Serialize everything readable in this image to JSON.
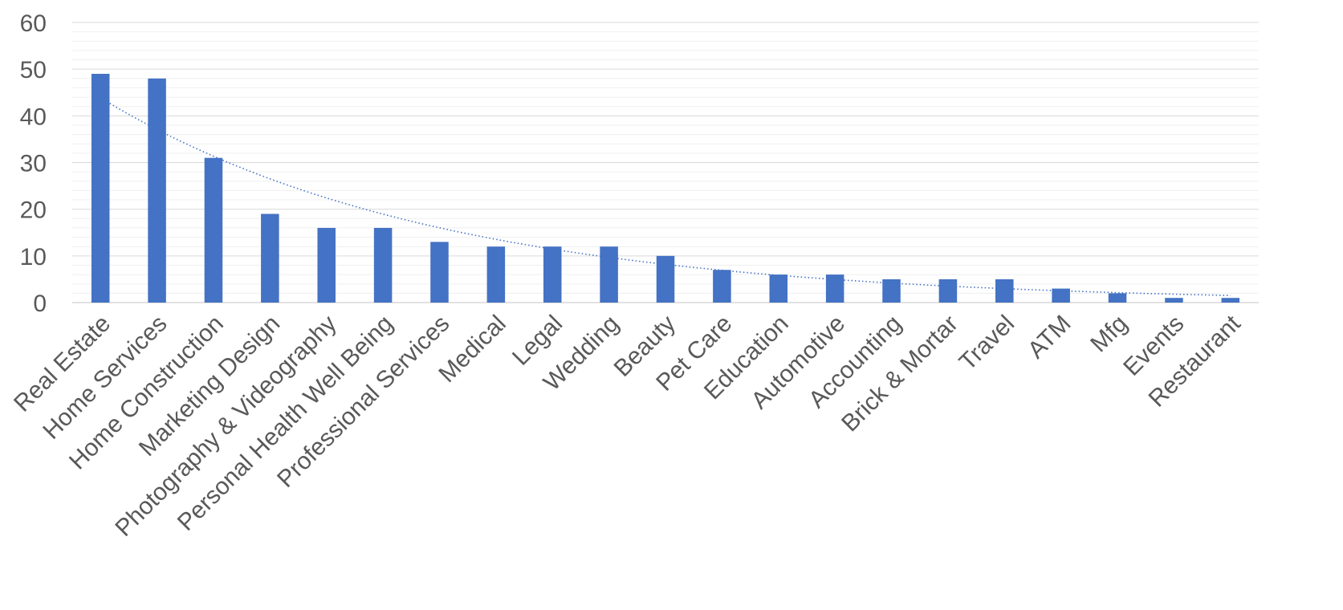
{
  "chart_data": {
    "type": "bar",
    "title": "",
    "xlabel": "",
    "ylabel": "",
    "ylim": [
      0,
      60
    ],
    "yticks": [
      0,
      10,
      20,
      30,
      40,
      50,
      60
    ],
    "grid": "horizontal major and minor",
    "legend": "none",
    "trendline": "exponential, dotted",
    "colors": {
      "bar": "#4472c4",
      "trendline": "#4472c4",
      "text": "#595959"
    },
    "categories": [
      "Real Estate",
      "Home Services",
      "Home Construction",
      "Marketing Design",
      "Photography & Videography",
      "Personal Health Well Being",
      "Professional Services",
      "Medical",
      "Legal",
      "Wedding",
      "Beauty",
      "Pet Care",
      "Education",
      "Automotive",
      "Accounting",
      "Brick & Mortar",
      "Travel",
      "ATM",
      "Mfg",
      "Events",
      "Restaurant"
    ],
    "values": [
      49,
      48,
      31,
      19,
      16,
      16,
      13,
      12,
      12,
      12,
      10,
      7,
      6,
      6,
      5,
      5,
      5,
      3,
      2,
      1,
      1
    ]
  }
}
